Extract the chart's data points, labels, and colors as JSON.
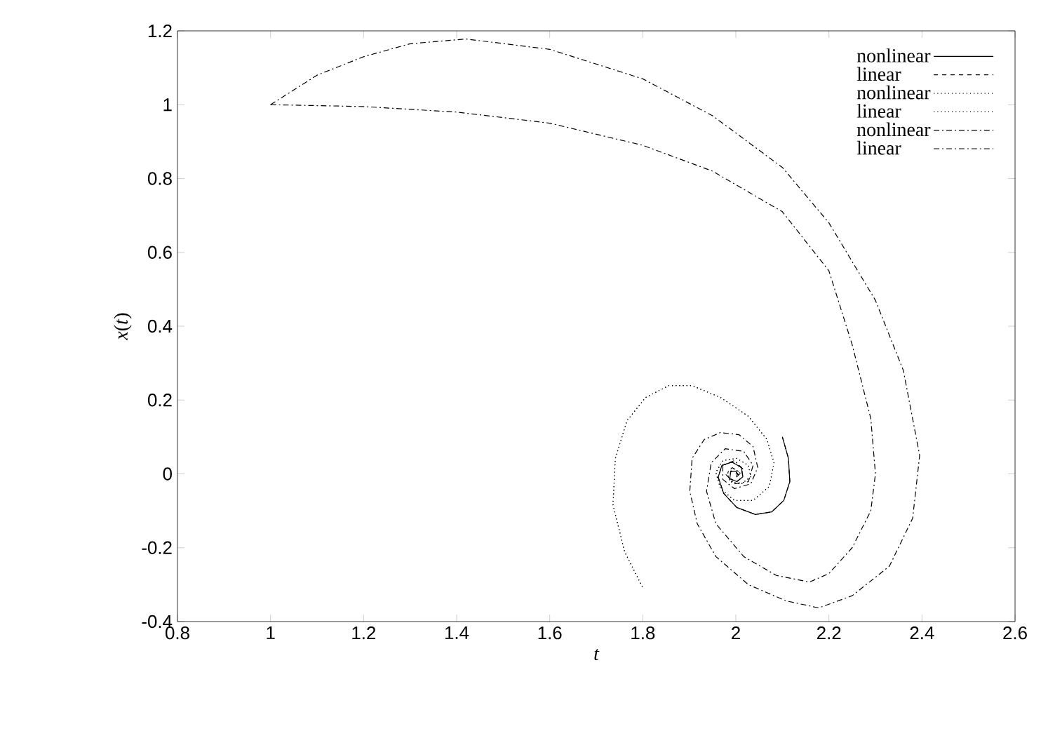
{
  "chart_data": {
    "type": "line",
    "xlabel": "t",
    "ylabel": "*x*(*t*)",
    "xlim": [
      0.8,
      2.6
    ],
    "ylim": [
      -0.4,
      1.2
    ],
    "xticks": [
      0.8,
      1,
      1.2,
      1.4,
      1.6,
      1.8,
      2,
      2.2,
      2.4,
      2.6
    ],
    "yticks": [
      -0.4,
      -0.2,
      0,
      0.2,
      0.4,
      0.6,
      0.8,
      1,
      1.2
    ],
    "grid": false,
    "legend": "top right",
    "marker": "none",
    "series": [
      {
        "name": "nonlinear",
        "color": "#000000",
        "line_style": "solid",
        "x": [
          2.1,
          2.113,
          2.116,
          2.103,
          2.077,
          2.042,
          2.002,
          1.974,
          1.962,
          1.97,
          1.992,
          2.012,
          2.015,
          2.002,
          1.987,
          1.989,
          2.0,
          2.005,
          2.0
        ],
        "values": [
          0.1,
          0.042,
          -0.021,
          -0.072,
          -0.103,
          -0.11,
          -0.091,
          -0.053,
          -0.009,
          0.023,
          0.032,
          0.017,
          -0.008,
          -0.021,
          -0.013,
          0.007,
          0.007,
          -0.002,
          0.0
        ]
      },
      {
        "name": "linear",
        "color": "#000000",
        "line_style": "dashed",
        "x": [
          2.1,
          2.113,
          2.116,
          2.103,
          2.077,
          2.042,
          2.002,
          1.974,
          1.962,
          1.97,
          1.992,
          2.012,
          2.015,
          2.002,
          1.987,
          1.989,
          2.0,
          2.005,
          2.0
        ],
        "values": [
          0.1,
          0.042,
          -0.021,
          -0.072,
          -0.103,
          -0.11,
          -0.091,
          -0.053,
          -0.009,
          0.023,
          0.032,
          0.017,
          -0.008,
          -0.021,
          -0.013,
          0.007,
          0.007,
          -0.002,
          0.0
        ]
      },
      {
        "name": "nonlinear",
        "color": "#000000",
        "line_style": "dotted",
        "x": [
          1.799,
          1.761,
          1.736,
          1.741,
          1.766,
          1.806,
          1.856,
          1.906,
          1.967,
          2.027,
          2.067,
          2.082,
          2.072,
          2.037,
          1.997,
          1.967,
          1.957,
          1.972,
          2.002,
          2.027,
          2.032,
          2.012,
          1.987,
          1.982,
          1.997,
          2.009,
          2.0
        ],
        "values": [
          -0.306,
          -0.211,
          -0.084,
          0.042,
          0.144,
          0.207,
          0.239,
          0.239,
          0.207,
          0.156,
          0.093,
          0.03,
          -0.034,
          -0.072,
          -0.072,
          -0.04,
          0.004,
          0.036,
          0.042,
          0.023,
          -0.008,
          -0.027,
          -0.021,
          0.002,
          0.014,
          0.002,
          0.0
        ]
      },
      {
        "name": "linear",
        "color": "#000000",
        "line_style": "dotted",
        "x": [
          1.799,
          1.761,
          1.736,
          1.741,
          1.766,
          1.806,
          1.856,
          1.906,
          1.967,
          2.027,
          2.067,
          2.082,
          2.072,
          2.037,
          1.997,
          1.967,
          1.957,
          1.972,
          2.002,
          2.027,
          2.032,
          2.012,
          1.987,
          1.982,
          1.997,
          2.009,
          2.0
        ],
        "values": [
          -0.306,
          -0.211,
          -0.084,
          0.042,
          0.144,
          0.207,
          0.239,
          0.239,
          0.207,
          0.156,
          0.093,
          0.03,
          -0.034,
          -0.072,
          -0.072,
          -0.04,
          0.004,
          0.036,
          0.042,
          0.023,
          -0.008,
          -0.027,
          -0.021,
          0.002,
          0.014,
          0.002,
          0.0
        ]
      },
      {
        "name": "nonlinear",
        "color": "#000000",
        "line_style": "dashdot",
        "x": [
          1.0,
          1.1,
          1.2,
          1.3,
          1.42,
          1.6,
          1.8,
          1.95,
          2.1,
          2.2,
          2.3,
          2.36,
          2.395,
          2.38,
          2.33,
          2.25,
          2.178,
          2.108,
          2.027,
          1.957,
          1.917,
          1.901,
          1.906,
          1.932,
          1.967,
          2.007,
          2.037,
          2.047,
          2.032,
          1.997,
          1.972,
          1.972,
          1.997,
          2.017,
          2.002,
          2.0
        ],
        "values": [
          1.0,
          1.08,
          1.13,
          1.165,
          1.178,
          1.15,
          1.07,
          0.97,
          0.83,
          0.68,
          0.47,
          0.28,
          0.05,
          -0.12,
          -0.25,
          -0.33,
          -0.363,
          -0.344,
          -0.3,
          -0.224,
          -0.135,
          -0.047,
          0.042,
          0.093,
          0.112,
          0.106,
          0.074,
          0.017,
          -0.027,
          -0.04,
          -0.015,
          0.023,
          0.036,
          0.011,
          -0.008,
          0.0
        ]
      },
      {
        "name": "linear",
        "color": "#000000",
        "line_style": "dashdot",
        "x": [
          1.0,
          1.2,
          1.4,
          1.6,
          1.8,
          1.95,
          2.1,
          2.2,
          2.25,
          2.29,
          2.3,
          2.29,
          2.25,
          2.2,
          2.158,
          2.087,
          2.017,
          1.957,
          1.937,
          1.947,
          1.977,
          2.017,
          2.037,
          2.027,
          1.997,
          1.979,
          1.992,
          2.005,
          2.0
        ],
        "values": [
          1.0,
          0.995,
          0.98,
          0.95,
          0.89,
          0.82,
          0.71,
          0.55,
          0.35,
          0.15,
          0.0,
          -0.1,
          -0.2,
          -0.27,
          -0.293,
          -0.275,
          -0.224,
          -0.135,
          -0.047,
          0.03,
          0.068,
          0.061,
          0.023,
          -0.021,
          -0.027,
          -0.002,
          0.017,
          0.007,
          0.0
        ]
      }
    ]
  }
}
